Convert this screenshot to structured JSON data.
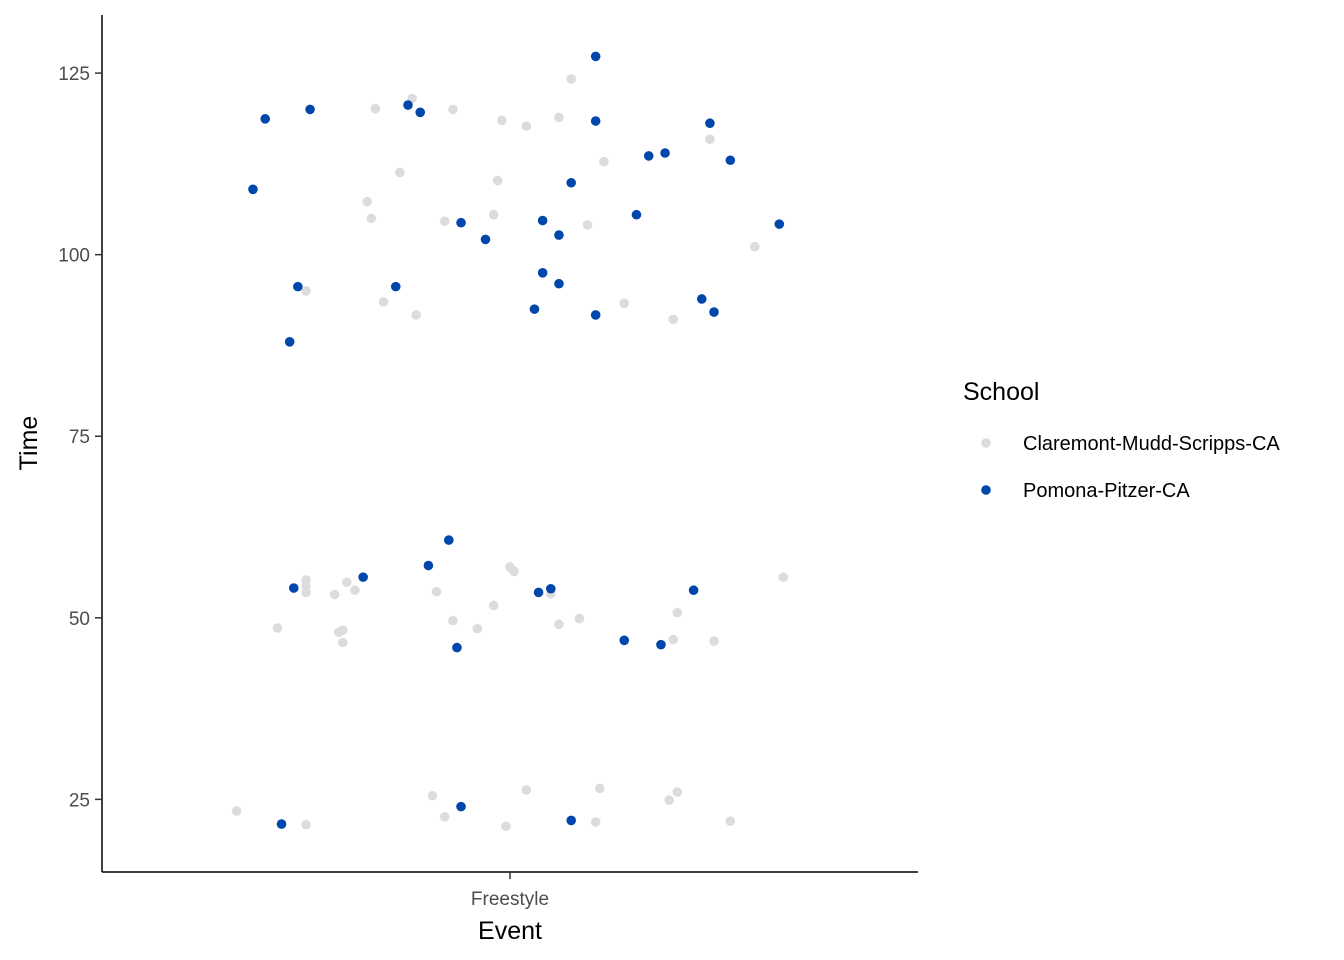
{
  "chart_data": {
    "type": "scatter",
    "title": "",
    "xlabel": "Event",
    "ylabel": "Time",
    "categories": [
      "Freestyle"
    ],
    "ylim": [
      15,
      133
    ],
    "yticks": [
      25,
      50,
      75,
      100,
      125
    ],
    "grid": false,
    "legend": {
      "title": "School",
      "placement": "right"
    },
    "series": [
      {
        "name": "Claremont-Mudd-Scripps-CA",
        "color": "#dcdcdc",
        "points": [
          {
            "x": -0.67,
            "y": 23.4
          },
          {
            "x": -0.57,
            "y": 48.6
          },
          {
            "x": -0.5,
            "y": 21.5
          },
          {
            "x": -0.5,
            "y": 53.5
          },
          {
            "x": -0.5,
            "y": 55.2
          },
          {
            "x": -0.5,
            "y": 54.4
          },
          {
            "x": -0.5,
            "y": 95.0
          },
          {
            "x": -0.43,
            "y": 53.2
          },
          {
            "x": -0.42,
            "y": 48.0
          },
          {
            "x": -0.41,
            "y": 48.3
          },
          {
            "x": -0.41,
            "y": 46.6
          },
          {
            "x": -0.4,
            "y": 54.9
          },
          {
            "x": -0.38,
            "y": 53.8
          },
          {
            "x": -0.35,
            "y": 107.3
          },
          {
            "x": -0.34,
            "y": 105.0
          },
          {
            "x": -0.33,
            "y": 120.1
          },
          {
            "x": -0.31,
            "y": 93.5
          },
          {
            "x": -0.27,
            "y": 111.3
          },
          {
            "x": -0.24,
            "y": 121.5
          },
          {
            "x": -0.23,
            "y": 91.7
          },
          {
            "x": -0.19,
            "y": 25.5
          },
          {
            "x": -0.18,
            "y": 53.6
          },
          {
            "x": -0.16,
            "y": 22.6
          },
          {
            "x": -0.16,
            "y": 104.6
          },
          {
            "x": -0.14,
            "y": 49.6
          },
          {
            "x": -0.14,
            "y": 120.0
          },
          {
            "x": -0.08,
            "y": 48.5
          },
          {
            "x": -0.04,
            "y": 51.7
          },
          {
            "x": -0.04,
            "y": 105.5
          },
          {
            "x": -0.03,
            "y": 110.2
          },
          {
            "x": -0.02,
            "y": 118.5
          },
          {
            "x": -0.01,
            "y": 21.3
          },
          {
            "x": 0.0,
            "y": 57.0
          },
          {
            "x": 0.01,
            "y": 56.4
          },
          {
            "x": 0.04,
            "y": 26.3
          },
          {
            "x": 0.04,
            "y": 117.7
          },
          {
            "x": 0.1,
            "y": 53.3
          },
          {
            "x": 0.12,
            "y": 118.9
          },
          {
            "x": 0.12,
            "y": 49.1
          },
          {
            "x": 0.15,
            "y": 124.2
          },
          {
            "x": 0.17,
            "y": 49.9
          },
          {
            "x": 0.19,
            "y": 104.1
          },
          {
            "x": 0.21,
            "y": 21.9
          },
          {
            "x": 0.22,
            "y": 26.5
          },
          {
            "x": 0.23,
            "y": 112.8
          },
          {
            "x": 0.28,
            "y": 93.3
          },
          {
            "x": 0.39,
            "y": 24.9
          },
          {
            "x": 0.4,
            "y": 47.0
          },
          {
            "x": 0.4,
            "y": 91.1
          },
          {
            "x": 0.41,
            "y": 26.0
          },
          {
            "x": 0.41,
            "y": 50.7
          },
          {
            "x": 0.49,
            "y": 115.9
          },
          {
            "x": 0.5,
            "y": 46.8
          },
          {
            "x": 0.54,
            "y": 22.0
          },
          {
            "x": 0.6,
            "y": 101.1
          },
          {
            "x": 0.67,
            "y": 55.6
          }
        ]
      },
      {
        "name": "Pomona-Pitzer-CA",
        "color": "#0047ab",
        "points": [
          {
            "x": -0.63,
            "y": 109.0
          },
          {
            "x": -0.6,
            "y": 118.7
          },
          {
            "x": -0.56,
            "y": 21.6
          },
          {
            "x": -0.54,
            "y": 88.0
          },
          {
            "x": -0.53,
            "y": 54.1
          },
          {
            "x": -0.52,
            "y": 95.6
          },
          {
            "x": -0.49,
            "y": 120.0
          },
          {
            "x": -0.36,
            "y": 55.6
          },
          {
            "x": -0.28,
            "y": 95.6
          },
          {
            "x": -0.25,
            "y": 120.6
          },
          {
            "x": -0.22,
            "y": 119.6
          },
          {
            "x": -0.2,
            "y": 57.2
          },
          {
            "x": -0.15,
            "y": 60.7
          },
          {
            "x": -0.13,
            "y": 45.9
          },
          {
            "x": -0.12,
            "y": 104.4
          },
          {
            "x": -0.12,
            "y": 24.0
          },
          {
            "x": -0.06,
            "y": 102.1
          },
          {
            "x": 0.06,
            "y": 92.5
          },
          {
            "x": 0.07,
            "y": 53.5
          },
          {
            "x": 0.08,
            "y": 97.5
          },
          {
            "x": 0.08,
            "y": 104.7
          },
          {
            "x": 0.1,
            "y": 54.0
          },
          {
            "x": 0.12,
            "y": 102.7
          },
          {
            "x": 0.12,
            "y": 96.0
          },
          {
            "x": 0.15,
            "y": 109.9
          },
          {
            "x": 0.15,
            "y": 22.1
          },
          {
            "x": 0.21,
            "y": 91.7
          },
          {
            "x": 0.21,
            "y": 118.4
          },
          {
            "x": 0.21,
            "y": 127.3
          },
          {
            "x": 0.28,
            "y": 46.9
          },
          {
            "x": 0.31,
            "y": 105.5
          },
          {
            "x": 0.34,
            "y": 113.6
          },
          {
            "x": 0.37,
            "y": 46.3
          },
          {
            "x": 0.38,
            "y": 114.0
          },
          {
            "x": 0.45,
            "y": 53.8
          },
          {
            "x": 0.47,
            "y": 93.9
          },
          {
            "x": 0.49,
            "y": 118.1
          },
          {
            "x": 0.5,
            "y": 92.1
          },
          {
            "x": 0.54,
            "y": 113.0
          },
          {
            "x": 0.66,
            "y": 104.2
          }
        ]
      }
    ]
  }
}
